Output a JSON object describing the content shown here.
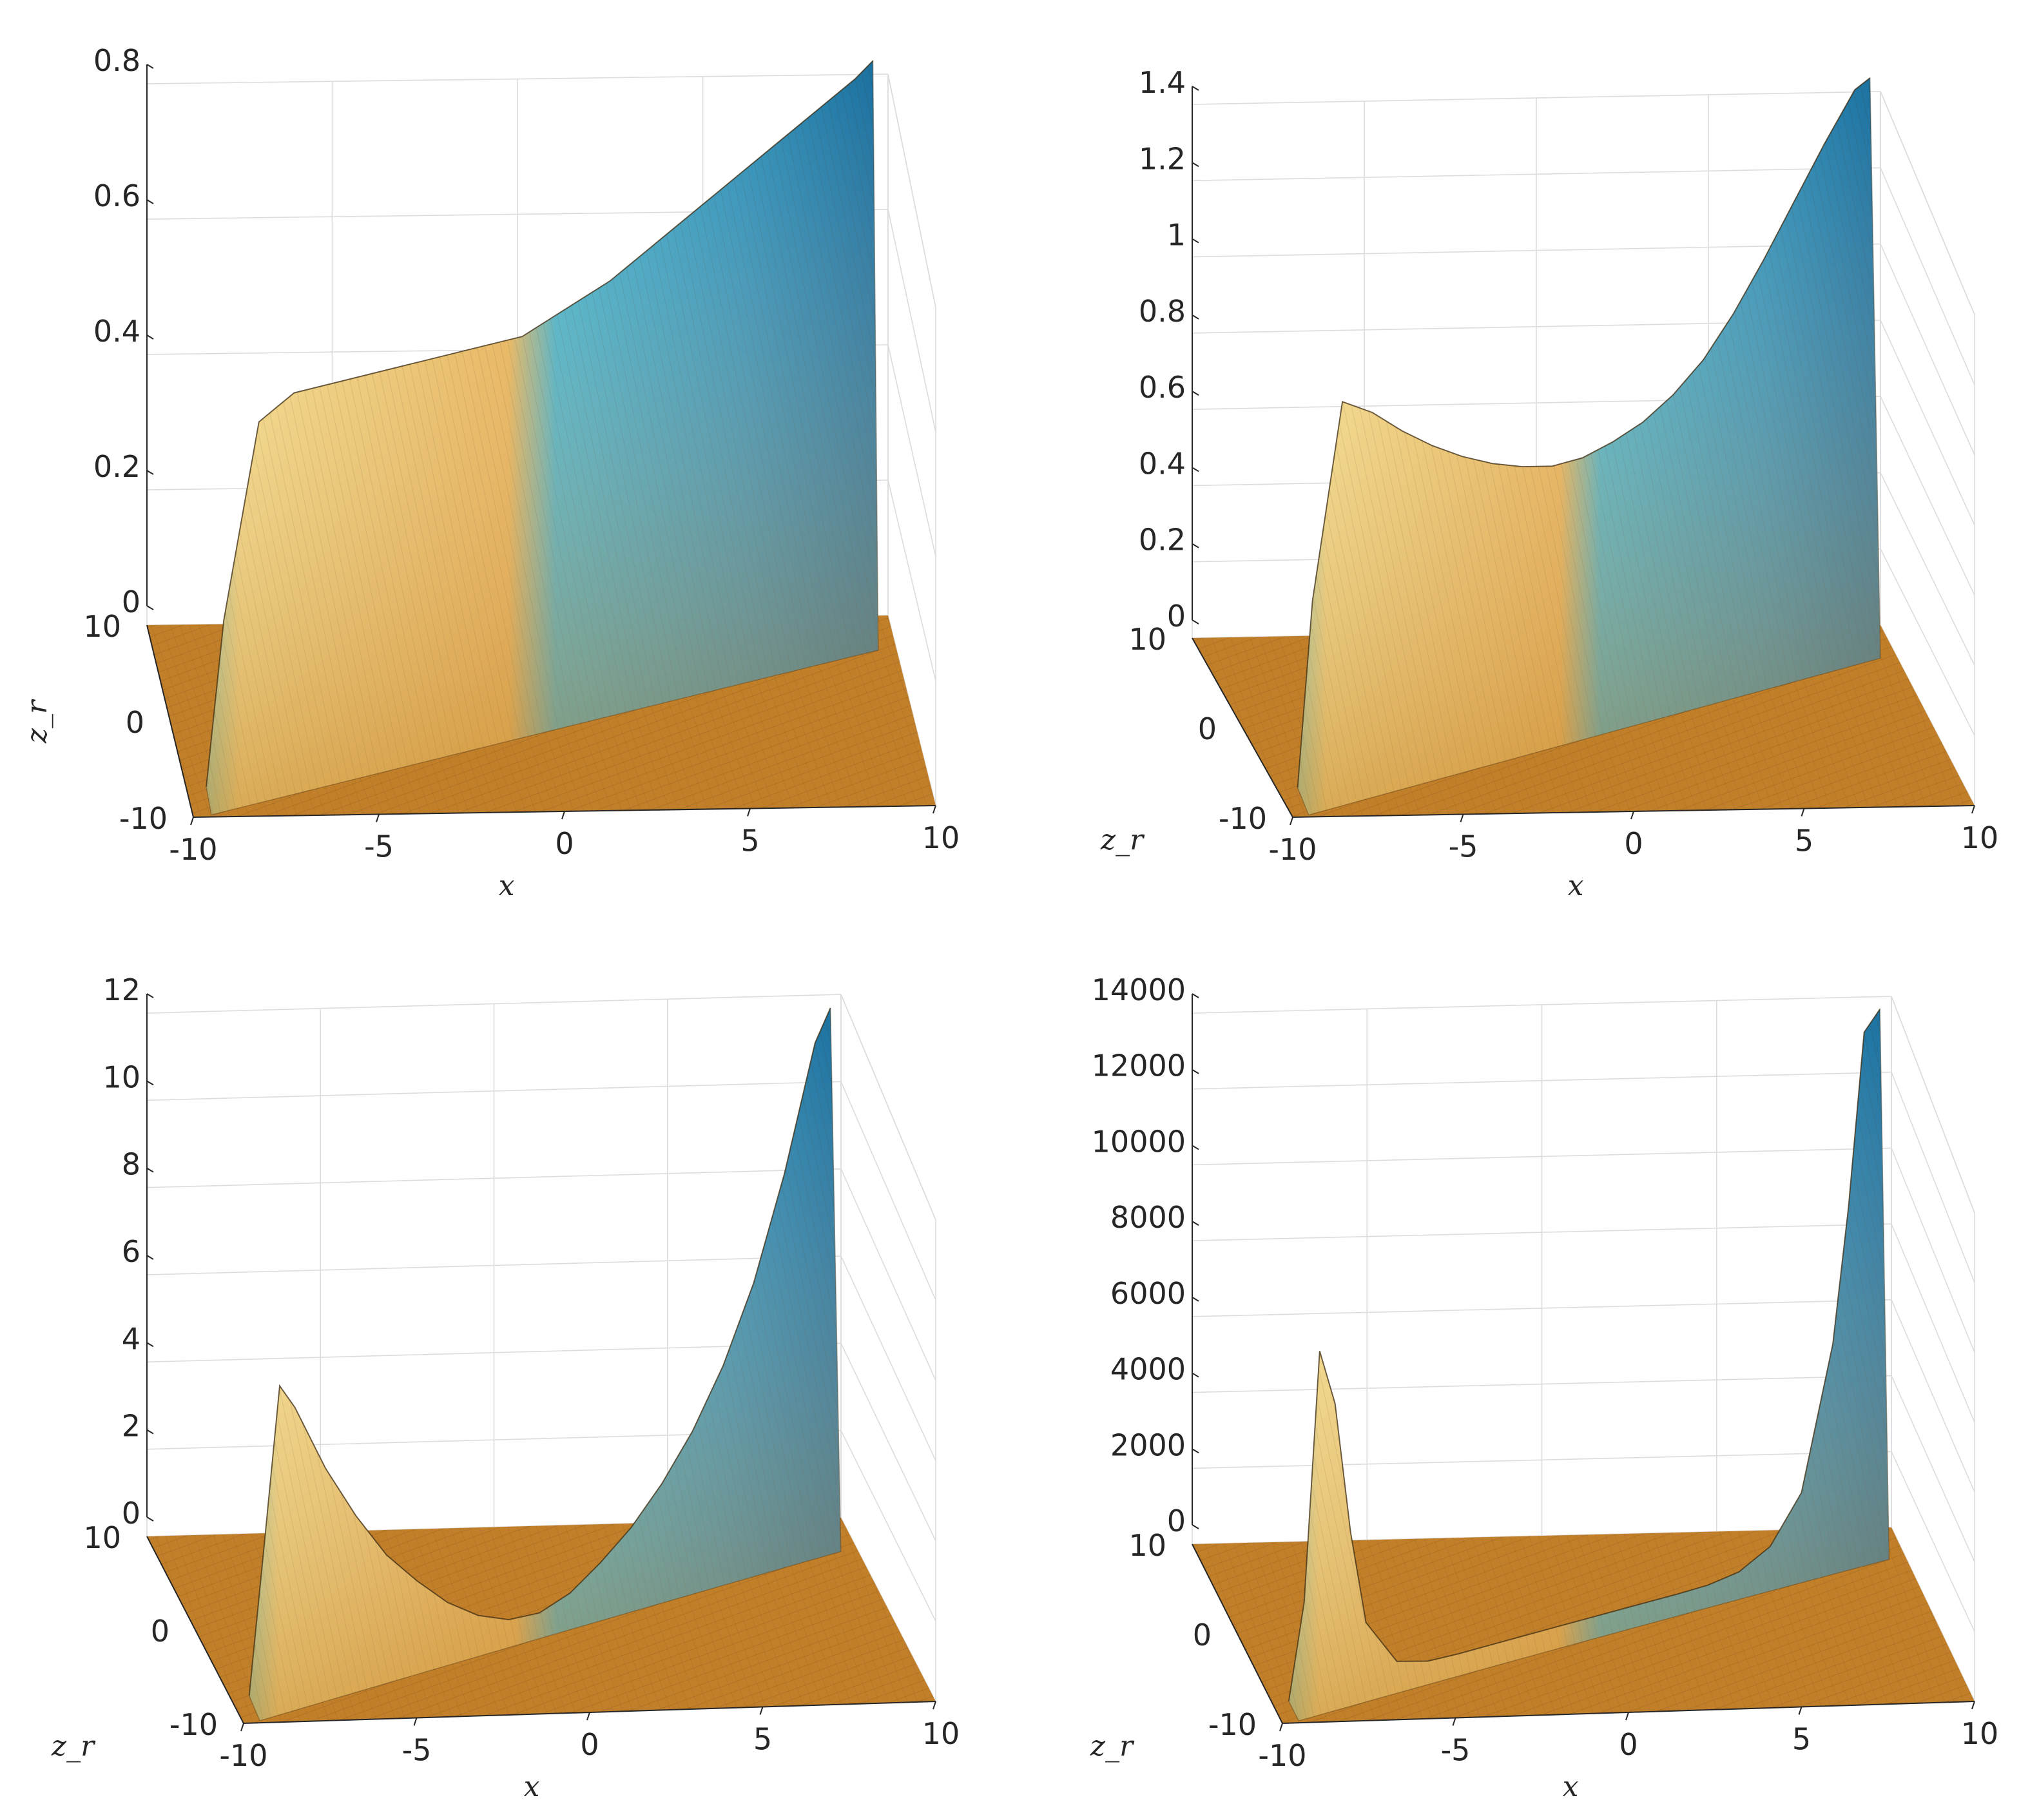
{
  "colors": {
    "gold": "#d38b24",
    "pale_yellow": "#f6df8a",
    "mint": "#98d7b6",
    "teal": "#3eb0cc",
    "blue": "#1a6f9e",
    "floor": "#c17f2a",
    "axis": "#262626",
    "grid": "#dcdcdc"
  },
  "chart_data": [
    {
      "type": "surface",
      "panel": "top-left",
      "title": "",
      "xlabel": "x",
      "ylabel": "z_r",
      "zlabel": "",
      "xlim": [
        -10,
        10
      ],
      "ylim": [
        -10,
        10
      ],
      "zlim": [
        0,
        0.8
      ],
      "xticks": [
        -10,
        -5,
        0,
        5,
        10
      ],
      "yticks": [
        -10,
        0,
        10
      ],
      "zticks": [
        0,
        0.2,
        0.4,
        0.6,
        0.8
      ],
      "x_tick_labels": [
        "-10",
        "-5",
        "0",
        "5",
        "10"
      ],
      "y_tick_labels": [
        "-10",
        "0",
        "10"
      ],
      "z_tick_labels": [
        "0",
        "0.2",
        "0.4",
        "0.6",
        "0.8"
      ],
      "x_tick_key": "x_tick_labels",
      "y_tick_key": "y_tick_labels",
      "z_tick_key": "z_tick_labels",
      "view": "tall",
      "ridge": "plateau",
      "ridge_x": [
        -9.5,
        -9,
        -8,
        -7,
        -6,
        -5,
        -4,
        -3,
        -2,
        -1,
        -0.5,
        0,
        1,
        2,
        3,
        4,
        5,
        6,
        7,
        8,
        9,
        9.5
      ],
      "ridge_z": [
        0.01,
        0.25,
        0.53,
        0.56,
        0.56,
        0.56,
        0.56,
        0.56,
        0.56,
        0.56,
        0.56,
        0.57,
        0.59,
        0.61,
        0.64,
        0.67,
        0.7,
        0.73,
        0.76,
        0.79,
        0.82,
        0.84
      ]
    },
    {
      "type": "surface",
      "panel": "top-right",
      "title": "",
      "xlabel": "x",
      "ylabel": "z_r",
      "zlabel": "",
      "xlim": [
        -10,
        10
      ],
      "ylim": [
        -10,
        10
      ],
      "zlim": [
        0,
        1.4
      ],
      "xticks": [
        -10,
        -5,
        0,
        5,
        10
      ],
      "yticks": [
        -10,
        0,
        10
      ],
      "zticks": [
        0,
        0.2,
        0.4,
        0.6,
        0.8,
        1,
        1.2,
        1.4
      ],
      "x_tick_labels": [
        "-10",
        "-5",
        "0",
        "5",
        "10"
      ],
      "y_tick_labels": [
        "-10",
        "0",
        "10"
      ],
      "z_tick_labels": [
        "0",
        "0.2",
        "0.4",
        "0.6",
        "0.8",
        "1",
        "1.2",
        "1.4"
      ],
      "x_tick_key": "x_tick_labels",
      "y_tick_key": "y_tick_labels",
      "z_tick_key": "z_tick_labels",
      "view": "low",
      "ridge": "valley",
      "ridge_x": [
        -9.5,
        -9,
        -8,
        -7,
        -6,
        -5,
        -4,
        -3,
        -2,
        -1,
        0,
        1,
        2,
        3,
        4,
        5,
        6,
        7,
        8,
        9,
        9.5
      ],
      "ridge_z": [
        0.02,
        0.5,
        1.0,
        0.95,
        0.88,
        0.82,
        0.77,
        0.73,
        0.7,
        0.68,
        0.68,
        0.7,
        0.73,
        0.78,
        0.85,
        0.95,
        1.07,
        1.2,
        1.33,
        1.45,
        1.47
      ]
    },
    {
      "type": "surface",
      "panel": "bottom-left",
      "title": "",
      "xlabel": "x",
      "ylabel": "z_r",
      "zlabel": "",
      "xlim": [
        -10,
        10
      ],
      "ylim": [
        -10,
        10
      ],
      "zlim": [
        0,
        12
      ],
      "xticks": [
        -10,
        -5,
        0,
        5,
        10
      ],
      "yticks": [
        -10,
        0,
        10
      ],
      "zticks": [
        0,
        2,
        4,
        6,
        8,
        10,
        12
      ],
      "x_tick_labels": [
        "-10",
        "-5",
        "0",
        "5",
        "10"
      ],
      "y_tick_labels": [
        "-10",
        "0",
        "10"
      ],
      "z_tick_labels": [
        "0",
        "2",
        "4",
        "6",
        "8",
        "10",
        "12"
      ],
      "x_tick_key": "x_tick_labels",
      "y_tick_key": "y_tick_labels",
      "z_tick_key": "z_tick_labels",
      "view": "low",
      "ridge": "valley",
      "ridge_x": [
        -9.5,
        -9,
        -8.5,
        -8,
        -7,
        -6,
        -5,
        -4,
        -3,
        -2,
        -1,
        0,
        1,
        2,
        3,
        4,
        5,
        6,
        7,
        8,
        9,
        9.5
      ],
      "ridge_z": [
        0.1,
        3.5,
        7.0,
        6.4,
        4.8,
        3.5,
        2.4,
        1.6,
        0.9,
        0.4,
        0.1,
        0.05,
        0.3,
        0.8,
        1.4,
        2.2,
        3.2,
        4.5,
        6.2,
        8.5,
        11.3,
        12.0
      ]
    },
    {
      "type": "surface",
      "panel": "bottom-right",
      "title": "",
      "xlabel": "x",
      "ylabel": "z_r",
      "zlabel": "",
      "xlim": [
        -10,
        10
      ],
      "ylim": [
        -10,
        10
      ],
      "zlim": [
        0,
        14000
      ],
      "xticks": [
        -10,
        -5,
        0,
        5,
        10
      ],
      "yticks": [
        -10,
        0,
        10
      ],
      "zticks": [
        0,
        2000,
        4000,
        6000,
        8000,
        10000,
        12000,
        14000
      ],
      "x_tick_labels": [
        "-10",
        "-5",
        "0",
        "5",
        "10"
      ],
      "y_tick_labels": [
        "-10",
        "0",
        "10"
      ],
      "z_tick_labels": [
        "0",
        "2000",
        "4000",
        "6000",
        "8000",
        "10000",
        "12000",
        "14000"
      ],
      "x_tick_key": "x_tick_labels",
      "y_tick_key": "y_tick_labels",
      "z_tick_key": "z_tick_labels",
      "view": "low",
      "ridge": "spikes",
      "ridge_x": [
        -9.5,
        -9,
        -8.5,
        -8,
        -7.5,
        -7,
        -6,
        -5,
        -4,
        -3,
        -2,
        -1,
        0,
        1,
        2,
        3,
        4,
        5,
        6,
        7,
        8,
        8.5,
        9,
        9.5
      ],
      "ridge_z": [
        0,
        2500,
        9000,
        7500,
        4000,
        1500,
        250,
        30,
        0,
        0,
        0,
        0,
        0,
        0,
        0,
        0,
        20,
        150,
        600,
        1800,
        5500,
        9000,
        13500,
        14000
      ]
    }
  ]
}
